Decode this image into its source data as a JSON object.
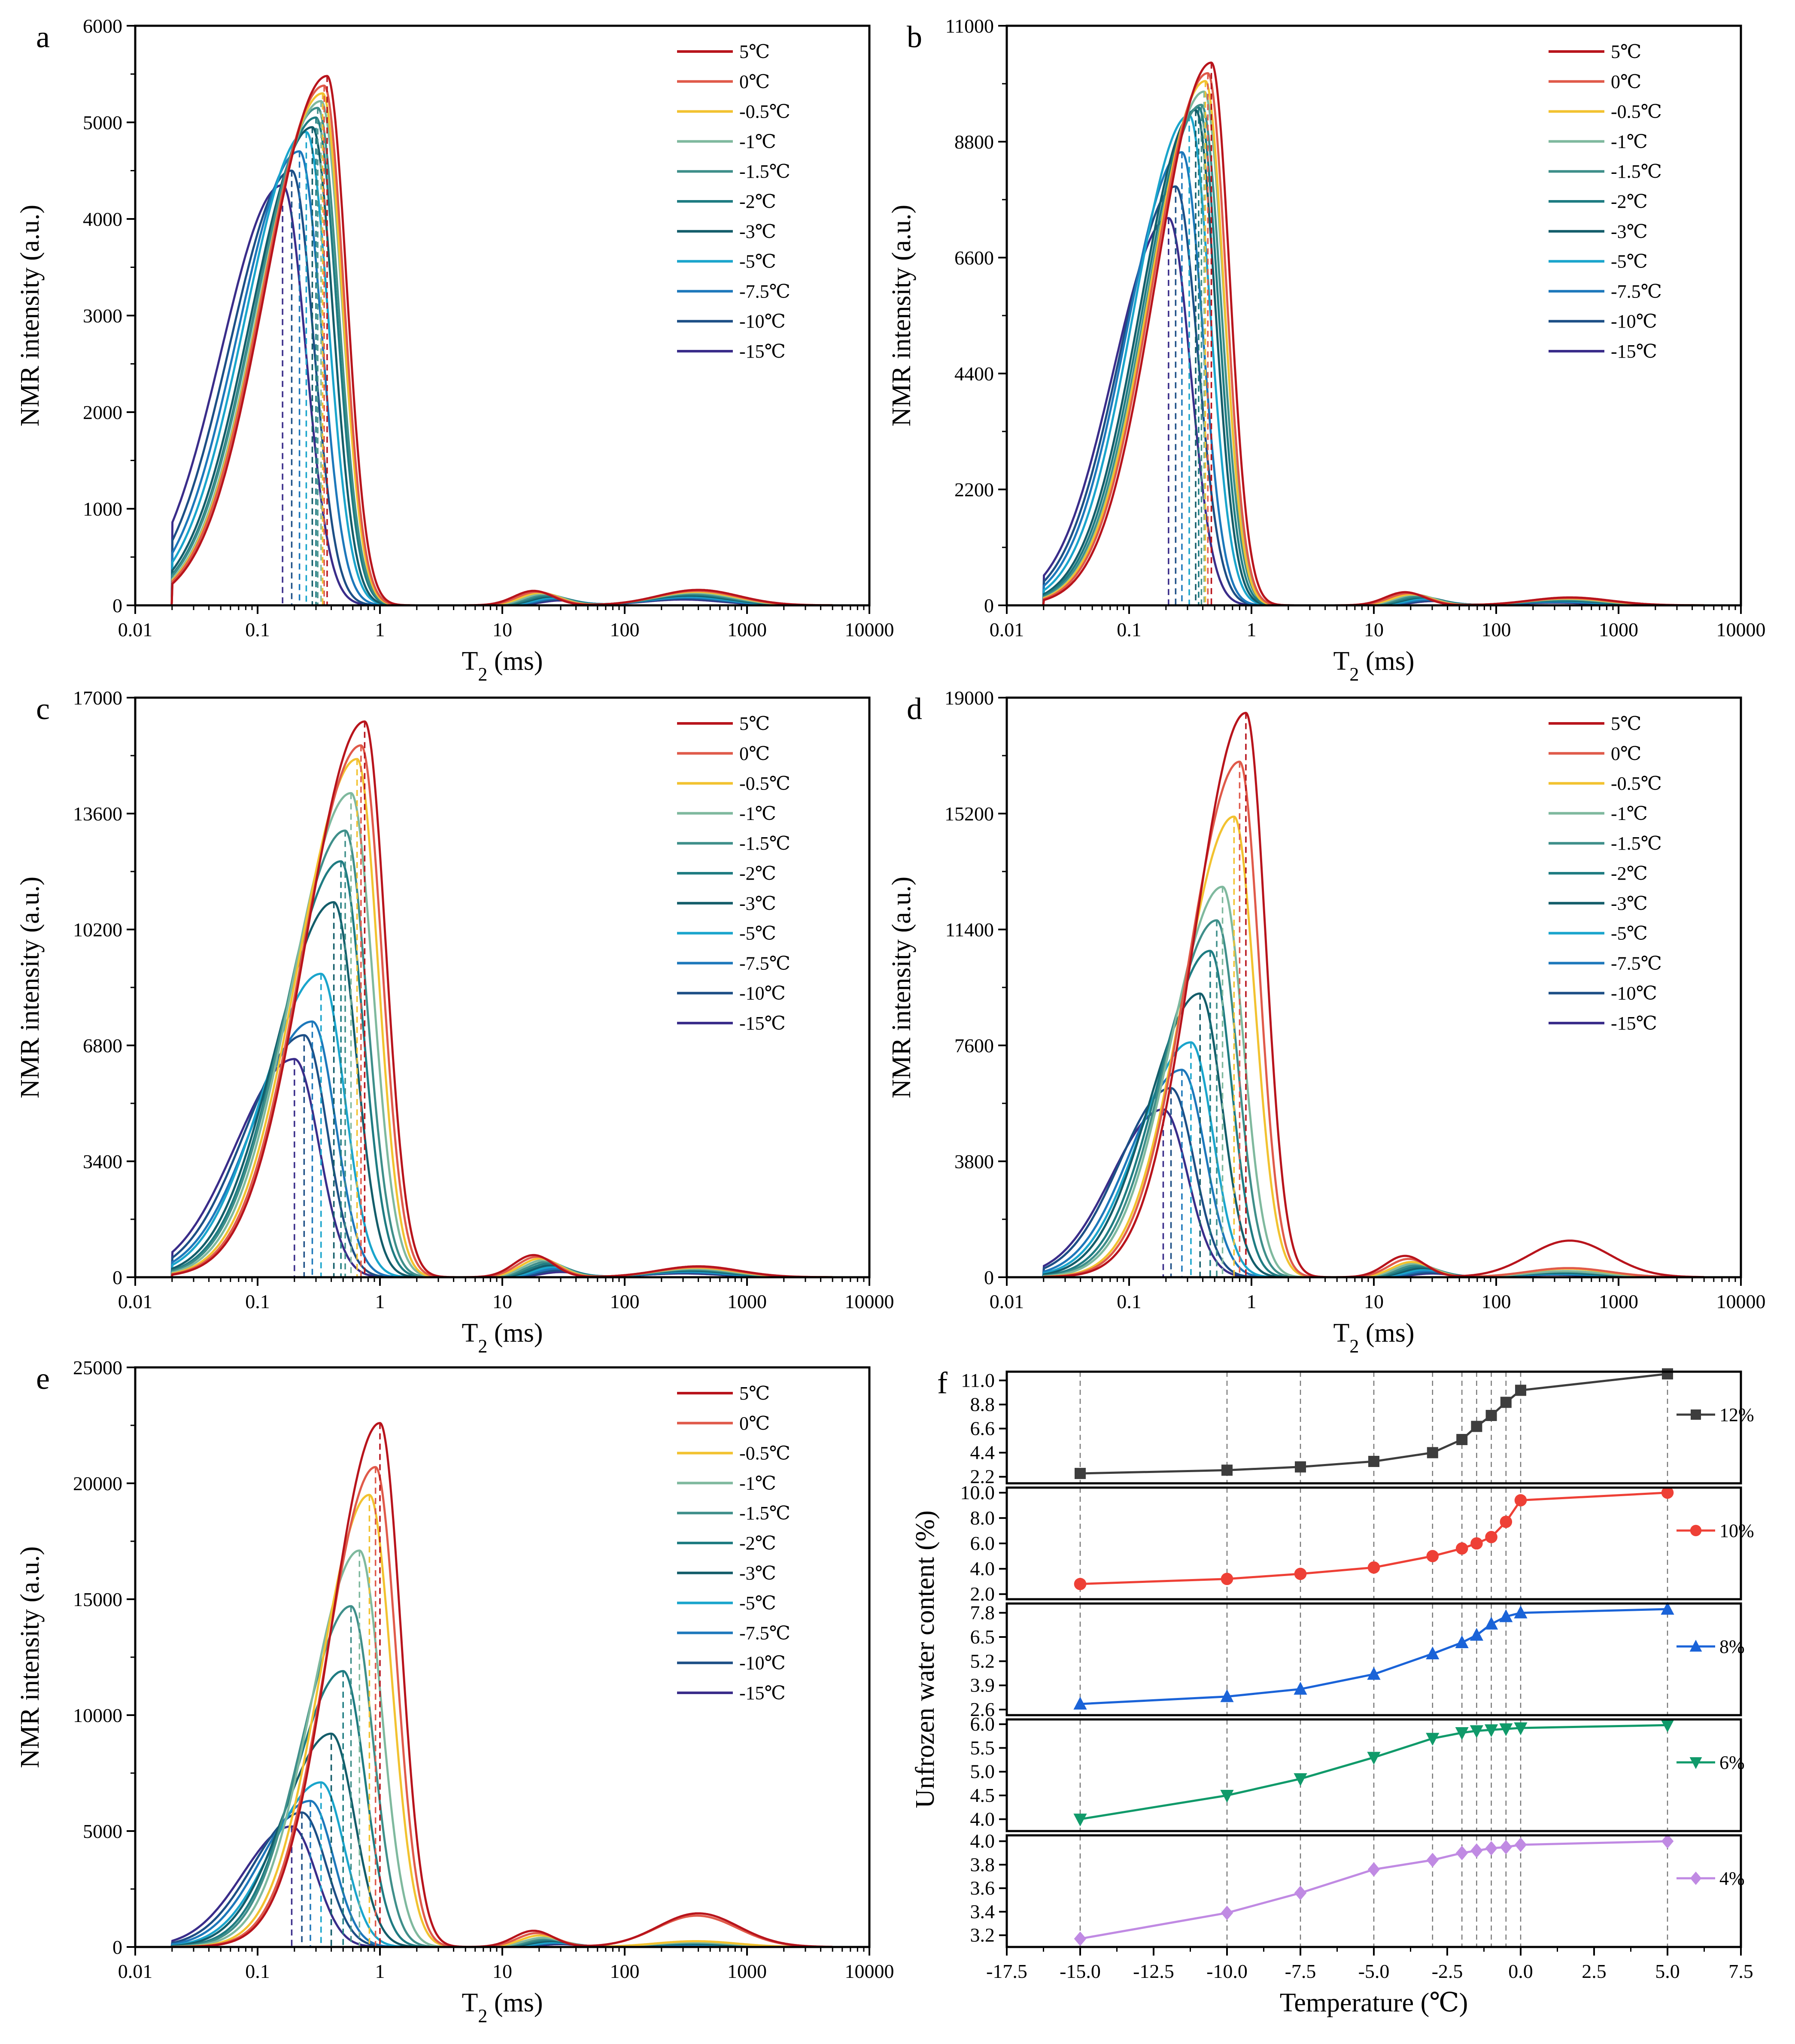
{
  "legend_labels": [
    "5℃",
    "0℃",
    "-0.5℃",
    "-1℃",
    "-1.5℃",
    "-2℃",
    "-3℃",
    "-5℃",
    "-7.5℃",
    "-10℃",
    "-15℃"
  ],
  "series_colors": [
    "#b8141c",
    "#e05a4a",
    "#f2c230",
    "#7fb99e",
    "#3f8f8a",
    "#1f7c82",
    "#135d6a",
    "#1aa5cc",
    "#1d78bb",
    "#1d4f86",
    "#3a2d8a"
  ],
  "chart_data": [
    {
      "panel": "a",
      "type": "line",
      "xlabel": "T2 (ms)",
      "ylabel": "NMR intensity (a.u.)",
      "xscale": "log",
      "xlim": [
        0.01,
        10000
      ],
      "x_ticks": [
        "0.01",
        "0.1",
        "1",
        "10",
        "100",
        "1000",
        "10000"
      ],
      "ylim": [
        0,
        6000
      ],
      "y_ticks": [
        "0",
        "1000",
        "2000",
        "3000",
        "4000",
        "5000",
        "6000"
      ],
      "legend_position": "top-right",
      "series": [
        {
          "name": "5℃",
          "peak_t2": 0.37,
          "peak": 5480,
          "left_width": 0.5,
          "right_width": 0.16,
          "second_peak": 150,
          "third_peak": 160
        },
        {
          "name": "0℃",
          "peak_t2": 0.35,
          "peak": 5380,
          "left_width": 0.5,
          "right_width": 0.16,
          "second_peak": 140,
          "third_peak": 150
        },
        {
          "name": "-0.5℃",
          "peak_t2": 0.34,
          "peak": 5300,
          "left_width": 0.5,
          "right_width": 0.16,
          "second_peak": 130,
          "third_peak": 140
        },
        {
          "name": "-1℃",
          "peak_t2": 0.33,
          "peak": 5220,
          "left_width": 0.5,
          "right_width": 0.17,
          "second_peak": 120,
          "third_peak": 130
        },
        {
          "name": "-1.5℃",
          "peak_t2": 0.31,
          "peak": 5150,
          "left_width": 0.5,
          "right_width": 0.17,
          "second_peak": 110,
          "third_peak": 120
        },
        {
          "name": "-2℃",
          "peak_t2": 0.3,
          "peak": 5050,
          "left_width": 0.5,
          "right_width": 0.17,
          "second_peak": 100,
          "third_peak": 110
        },
        {
          "name": "-3℃",
          "peak_t2": 0.28,
          "peak": 4950,
          "left_width": 0.5,
          "right_width": 0.17,
          "second_peak": 90,
          "third_peak": 100
        },
        {
          "name": "-5℃",
          "peak_t2": 0.25,
          "peak": 4900,
          "left_width": 0.5,
          "right_width": 0.18,
          "second_peak": 80,
          "third_peak": 90
        },
        {
          "name": "-7.5℃",
          "peak_t2": 0.22,
          "peak": 4700,
          "left_width": 0.5,
          "right_width": 0.18,
          "second_peak": 70,
          "third_peak": 80
        },
        {
          "name": "-10℃",
          "peak_t2": 0.19,
          "peak": 4500,
          "left_width": 0.5,
          "right_width": 0.18,
          "second_peak": 60,
          "third_peak": 70
        },
        {
          "name": "-15℃",
          "peak_t2": 0.16,
          "peak": 4350,
          "left_width": 0.5,
          "right_width": 0.19,
          "second_peak": 50,
          "third_peak": 60
        }
      ]
    },
    {
      "panel": "b",
      "type": "line",
      "xlabel": "T2 (ms)",
      "ylabel": "NMR intensity (a.u.)",
      "xscale": "log",
      "xlim": [
        0.01,
        10000
      ],
      "x_ticks": [
        "0.01",
        "0.1",
        "1",
        "10",
        "100",
        "1000",
        "10000"
      ],
      "ylim": [
        0,
        11000
      ],
      "y_ticks": [
        "0",
        "2200",
        "4400",
        "6600",
        "8800",
        "11000"
      ],
      "legend_position": "top-right",
      "series": [
        {
          "name": "5℃",
          "peak_t2": 0.47,
          "peak": 10300,
          "left_width": 0.45,
          "right_width": 0.15,
          "second_peak": 250,
          "third_peak": 150
        },
        {
          "name": "0℃",
          "peak_t2": 0.44,
          "peak": 10100,
          "left_width": 0.45,
          "right_width": 0.15,
          "second_peak": 230,
          "third_peak": 140
        },
        {
          "name": "-0.5℃",
          "peak_t2": 0.42,
          "peak": 9950,
          "left_width": 0.45,
          "right_width": 0.15,
          "second_peak": 210,
          "third_peak": 130
        },
        {
          "name": "-1℃",
          "peak_t2": 0.41,
          "peak": 9750,
          "left_width": 0.45,
          "right_width": 0.16,
          "second_peak": 200,
          "third_peak": 120
        },
        {
          "name": "-1.5℃",
          "peak_t2": 0.39,
          "peak": 9500,
          "left_width": 0.45,
          "right_width": 0.16,
          "second_peak": 180,
          "third_peak": 110
        },
        {
          "name": "-2℃",
          "peak_t2": 0.37,
          "peak": 9450,
          "left_width": 0.45,
          "right_width": 0.16,
          "second_peak": 160,
          "third_peak": 100
        },
        {
          "name": "-3℃",
          "peak_t2": 0.35,
          "peak": 9400,
          "left_width": 0.45,
          "right_width": 0.16,
          "second_peak": 150,
          "third_peak": 90
        },
        {
          "name": "-5℃",
          "peak_t2": 0.31,
          "peak": 9300,
          "left_width": 0.45,
          "right_width": 0.17,
          "second_peak": 130,
          "third_peak": 80
        },
        {
          "name": "-7.5℃",
          "peak_t2": 0.27,
          "peak": 8600,
          "left_width": 0.45,
          "right_width": 0.17,
          "second_peak": 110,
          "third_peak": 70
        },
        {
          "name": "-10℃",
          "peak_t2": 0.24,
          "peak": 7950,
          "left_width": 0.45,
          "right_width": 0.18,
          "second_peak": 90,
          "third_peak": 60
        },
        {
          "name": "-15℃",
          "peak_t2": 0.21,
          "peak": 7350,
          "left_width": 0.45,
          "right_width": 0.18,
          "second_peak": 80,
          "third_peak": 50
        }
      ]
    },
    {
      "panel": "c",
      "type": "line",
      "xlabel": "T2 (ms)",
      "ylabel": "NMR intensity (a.u.)",
      "xscale": "log",
      "xlim": [
        0.01,
        10000
      ],
      "x_ticks": [
        "0.01",
        "0.1",
        "1",
        "10",
        "100",
        "1000",
        "10000"
      ],
      "ylim": [
        0,
        17000
      ],
      "y_ticks": [
        "0",
        "3400",
        "6800",
        "10200",
        "13600",
        "17000"
      ],
      "legend_position": "top-right",
      "series": [
        {
          "name": "5℃",
          "peak_t2": 0.75,
          "peak": 16300,
          "left_width": 0.48,
          "right_width": 0.17,
          "second_peak": 650,
          "third_peak": 320
        },
        {
          "name": "0℃",
          "peak_t2": 0.7,
          "peak": 15600,
          "left_width": 0.48,
          "right_width": 0.17,
          "second_peak": 600,
          "third_peak": 300
        },
        {
          "name": "-0.5℃",
          "peak_t2": 0.65,
          "peak": 15200,
          "left_width": 0.48,
          "right_width": 0.17,
          "second_peak": 550,
          "third_peak": 280
        },
        {
          "name": "-1℃",
          "peak_t2": 0.58,
          "peak": 14200,
          "left_width": 0.48,
          "right_width": 0.18,
          "second_peak": 500,
          "third_peak": 250
        },
        {
          "name": "-1.5℃",
          "peak_t2": 0.52,
          "peak": 13100,
          "left_width": 0.48,
          "right_width": 0.18,
          "second_peak": 450,
          "third_peak": 230
        },
        {
          "name": "-2℃",
          "peak_t2": 0.48,
          "peak": 12200,
          "left_width": 0.48,
          "right_width": 0.18,
          "second_peak": 400,
          "third_peak": 210
        },
        {
          "name": "-3℃",
          "peak_t2": 0.42,
          "peak": 11000,
          "left_width": 0.48,
          "right_width": 0.18,
          "second_peak": 350,
          "third_peak": 190
        },
        {
          "name": "-5℃",
          "peak_t2": 0.33,
          "peak": 8900,
          "left_width": 0.48,
          "right_width": 0.19,
          "second_peak": 300,
          "third_peak": 170
        },
        {
          "name": "-7.5℃",
          "peak_t2": 0.28,
          "peak": 7500,
          "left_width": 0.48,
          "right_width": 0.19,
          "second_peak": 250,
          "third_peak": 150
        },
        {
          "name": "-10℃",
          "peak_t2": 0.24,
          "peak": 7100,
          "left_width": 0.48,
          "right_width": 0.19,
          "second_peak": 200,
          "third_peak": 130
        },
        {
          "name": "-15℃",
          "peak_t2": 0.2,
          "peak": 6400,
          "left_width": 0.48,
          "right_width": 0.2,
          "second_peak": 150,
          "third_peak": 110
        }
      ]
    },
    {
      "panel": "d",
      "type": "line",
      "xlabel": "T2 (ms)",
      "ylabel": "NMR intensity (a.u.)",
      "xscale": "log",
      "xlim": [
        0.01,
        10000
      ],
      "x_ticks": [
        "0.01",
        "0.1",
        "1",
        "10",
        "100",
        "1000",
        "10000"
      ],
      "ylim": [
        0,
        19000
      ],
      "y_ticks": [
        "0",
        "3800",
        "7600",
        "11400",
        "15200",
        "19000"
      ],
      "legend_position": "top-right",
      "series": [
        {
          "name": "5℃",
          "peak_t2": 0.9,
          "peak": 18500,
          "left_width": 0.42,
          "right_width": 0.16,
          "second_peak": 700,
          "third_peak": 1200
        },
        {
          "name": "0℃",
          "peak_t2": 0.8,
          "peak": 16900,
          "left_width": 0.42,
          "right_width": 0.16,
          "second_peak": 600,
          "third_peak": 300
        },
        {
          "name": "-0.5℃",
          "peak_t2": 0.72,
          "peak": 15100,
          "left_width": 0.42,
          "right_width": 0.17,
          "second_peak": 500,
          "third_peak": 280
        },
        {
          "name": "-1℃",
          "peak_t2": 0.58,
          "peak": 12800,
          "left_width": 0.42,
          "right_width": 0.17,
          "second_peak": 450,
          "third_peak": 200
        },
        {
          "name": "-1.5℃",
          "peak_t2": 0.52,
          "peak": 11700,
          "left_width": 0.42,
          "right_width": 0.17,
          "second_peak": 400,
          "third_peak": 180
        },
        {
          "name": "-2℃",
          "peak_t2": 0.46,
          "peak": 10700,
          "left_width": 0.42,
          "right_width": 0.17,
          "second_peak": 350,
          "third_peak": 160
        },
        {
          "name": "-3℃",
          "peak_t2": 0.38,
          "peak": 9300,
          "left_width": 0.42,
          "right_width": 0.18,
          "second_peak": 300,
          "third_peak": 140
        },
        {
          "name": "-5℃",
          "peak_t2": 0.32,
          "peak": 7700,
          "left_width": 0.42,
          "right_width": 0.18,
          "second_peak": 250,
          "third_peak": 120
        },
        {
          "name": "-7.5℃",
          "peak_t2": 0.27,
          "peak": 6800,
          "left_width": 0.42,
          "right_width": 0.19,
          "second_peak": 200,
          "third_peak": 100
        },
        {
          "name": "-10℃",
          "peak_t2": 0.22,
          "peak": 6200,
          "left_width": 0.42,
          "right_width": 0.19,
          "second_peak": 150,
          "third_peak": 90
        },
        {
          "name": "-15℃",
          "peak_t2": 0.19,
          "peak": 5500,
          "left_width": 0.42,
          "right_width": 0.2,
          "second_peak": 120,
          "third_peak": 80
        }
      ]
    },
    {
      "panel": "e",
      "type": "line",
      "xlabel": "T2 (ms)",
      "ylabel": "NMR intensity (a.u.)",
      "xscale": "log",
      "xlim": [
        0.01,
        10000
      ],
      "x_ticks": [
        "0.01",
        "0.1",
        "1",
        "10",
        "100",
        "1000",
        "10000"
      ],
      "ylim": [
        0,
        25000
      ],
      "y_ticks": [
        "0",
        "5000",
        "10000",
        "15000",
        "20000",
        "25000"
      ],
      "legend_position": "top-right",
      "series": [
        {
          "name": "5℃",
          "peak_t2": 1.0,
          "peak": 22600,
          "left_width": 0.4,
          "right_width": 0.17,
          "second_peak": 700,
          "third_peak": 1450
        },
        {
          "name": "0℃",
          "peak_t2": 0.92,
          "peak": 20700,
          "left_width": 0.4,
          "right_width": 0.17,
          "second_peak": 600,
          "third_peak": 1350
        },
        {
          "name": "-0.5℃",
          "peak_t2": 0.82,
          "peak": 19500,
          "left_width": 0.4,
          "right_width": 0.18,
          "second_peak": 500,
          "third_peak": 250
        },
        {
          "name": "-1℃",
          "peak_t2": 0.68,
          "peak": 17100,
          "left_width": 0.4,
          "right_width": 0.18,
          "second_peak": 400,
          "third_peak": 200
        },
        {
          "name": "-1.5℃",
          "peak_t2": 0.58,
          "peak": 14700,
          "left_width": 0.4,
          "right_width": 0.18,
          "second_peak": 350,
          "third_peak": 180
        },
        {
          "name": "-2℃",
          "peak_t2": 0.5,
          "peak": 11900,
          "left_width": 0.4,
          "right_width": 0.18,
          "second_peak": 300,
          "third_peak": 160
        },
        {
          "name": "-3℃",
          "peak_t2": 0.4,
          "peak": 9200,
          "left_width": 0.4,
          "right_width": 0.19,
          "second_peak": 250,
          "third_peak": 140
        },
        {
          "name": "-5℃",
          "peak_t2": 0.33,
          "peak": 7100,
          "left_width": 0.4,
          "right_width": 0.19,
          "second_peak": 200,
          "third_peak": 120
        },
        {
          "name": "-7.5℃",
          "peak_t2": 0.27,
          "peak": 6300,
          "left_width": 0.4,
          "right_width": 0.19,
          "second_peak": 180,
          "third_peak": 100
        },
        {
          "name": "-10℃",
          "peak_t2": 0.23,
          "peak": 5800,
          "left_width": 0.4,
          "right_width": 0.2,
          "second_peak": 150,
          "third_peak": 90
        },
        {
          "name": "-15℃",
          "peak_t2": 0.19,
          "peak": 5200,
          "left_width": 0.4,
          "right_width": 0.2,
          "second_peak": 120,
          "third_peak": 80
        }
      ]
    },
    {
      "panel": "f",
      "type": "line",
      "xlabel": "Temperature (℃)",
      "ylabel": "Unfrozen water content (%)",
      "x": [
        -15,
        -10,
        -7.5,
        -5,
        -3,
        -2,
        -1.5,
        -1,
        -0.5,
        0,
        5
      ],
      "xlim": [
        -17.5,
        7.5
      ],
      "x_ticks": [
        "-17.5",
        "-15.0",
        "-12.5",
        "-10.0",
        "-7.5",
        "-5.0",
        "-2.5",
        "0.0",
        "2.5",
        "5.0",
        "7.5"
      ],
      "x_tick_values": [
        -17.5,
        -15,
        -12.5,
        -10,
        -7.5,
        -5,
        -2.5,
        0,
        2.5,
        5,
        7.5
      ],
      "vlines": [
        -15,
        -10,
        -7.5,
        -5,
        -3,
        -2,
        -1.5,
        -1,
        -0.5,
        0,
        5
      ],
      "subplots": [
        {
          "name": "12%",
          "color": "#3d3d3d",
          "marker": "square",
          "ylim": [
            1.6,
            11.8
          ],
          "y_ticks": [
            2.2,
            4.4,
            6.6,
            8.8,
            11.0
          ],
          "y_tick_labels": [
            "2.2",
            "4.4",
            "6.6",
            "8.8",
            "11.0"
          ],
          "values": [
            2.5,
            2.8,
            3.1,
            3.6,
            4.4,
            5.6,
            6.8,
            7.8,
            9.0,
            10.1,
            11.6
          ]
        },
        {
          "name": "10%",
          "color": "#ee4036",
          "marker": "circle",
          "ylim": [
            1.6,
            10.4
          ],
          "y_ticks": [
            2.0,
            4.0,
            6.0,
            8.0,
            10.0
          ],
          "y_tick_labels": [
            "2.0",
            "4.0",
            "6.0",
            "8.0",
            "10.0"
          ],
          "values": [
            2.8,
            3.2,
            3.6,
            4.1,
            5.0,
            5.6,
            6.0,
            6.5,
            7.7,
            9.4,
            10.0
          ]
        },
        {
          "name": "8%",
          "color": "#1a63d8",
          "marker": "triangle-up",
          "ylim": [
            2.3,
            8.3
          ],
          "y_ticks": [
            2.6,
            3.9,
            5.2,
            6.5,
            7.8
          ],
          "y_tick_labels": [
            "2.6",
            "3.9",
            "5.2",
            "6.5",
            "7.8"
          ],
          "values": [
            2.9,
            3.3,
            3.7,
            4.5,
            5.6,
            6.2,
            6.6,
            7.2,
            7.6,
            7.8,
            8.0
          ]
        },
        {
          "name": "6%",
          "color": "#109a6a",
          "marker": "triangle-down",
          "ylim": [
            3.75,
            6.1
          ],
          "y_ticks": [
            4.0,
            4.5,
            5.0,
            5.5,
            6.0
          ],
          "y_tick_labels": [
            "4.0",
            "4.5",
            "5.0",
            "5.5",
            "6.0"
          ],
          "values": [
            4.0,
            4.5,
            4.85,
            5.3,
            5.7,
            5.82,
            5.86,
            5.88,
            5.9,
            5.92,
            5.98
          ]
        },
        {
          "name": "4%",
          "color": "#c08ae3",
          "marker": "diamond",
          "ylim": [
            3.1,
            4.05
          ],
          "y_ticks": [
            3.2,
            3.4,
            3.6,
            3.8,
            4.0
          ],
          "y_tick_labels": [
            "3.2",
            "3.4",
            "3.6",
            "3.8",
            "4.0"
          ],
          "values": [
            3.17,
            3.39,
            3.56,
            3.76,
            3.84,
            3.9,
            3.92,
            3.94,
            3.95,
            3.97,
            4.0
          ]
        }
      ]
    }
  ]
}
